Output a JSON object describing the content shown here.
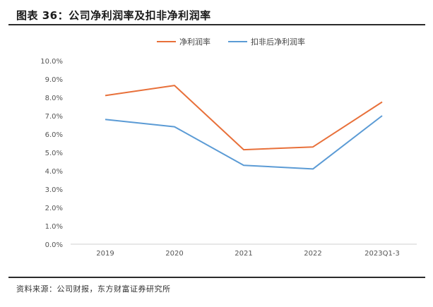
{
  "figure": {
    "title": "图表 36：公司净利润率及扣非净利润率",
    "source": "资料来源：公司财报，东方财富证券研究所"
  },
  "chart_data": {
    "type": "line",
    "x": [
      "2019",
      "2020",
      "2021",
      "2022",
      "2023Q1-3"
    ],
    "y_ticks": [
      "0.0%",
      "1.0%",
      "2.0%",
      "3.0%",
      "4.0%",
      "5.0%",
      "6.0%",
      "7.0%",
      "8.0%",
      "9.0%",
      "10.0%"
    ],
    "ylim": [
      0,
      10
    ],
    "series": [
      {
        "name": "净利润率",
        "color": "#e8703a",
        "values": [
          8.1,
          8.65,
          5.15,
          5.3,
          7.75
        ]
      },
      {
        "name": "扣非后净利润率",
        "color": "#5b9bd5",
        "values": [
          6.8,
          6.4,
          4.3,
          4.1,
          7.0
        ]
      }
    ],
    "grid": false,
    "legend_position": "top-center"
  }
}
